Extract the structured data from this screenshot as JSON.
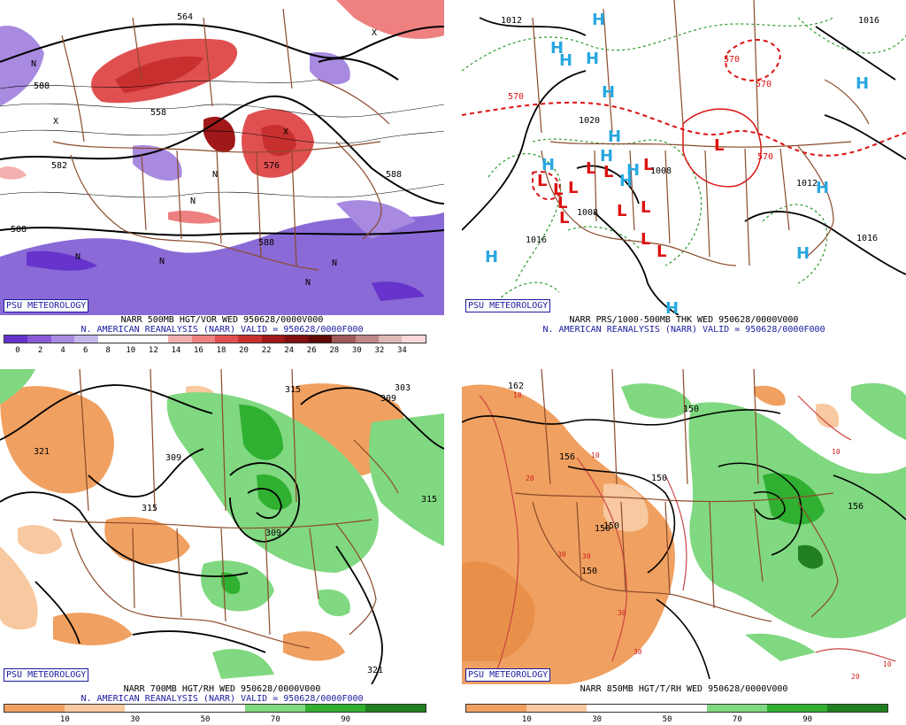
{
  "panels": [
    {
      "id": "p500",
      "badge": "PSU METEOROLOGY",
      "line1": "NARR 500MB HGT/VOR WED 950628/0000V000",
      "line2": "N. AMERICAN REANALYSIS (NARR) VALID = 950628/0000F000",
      "colorbar_labels": [
        "0",
        "2",
        "4",
        "6",
        "8",
        "10",
        "12",
        "14",
        "16",
        "18",
        "20",
        "22",
        "24",
        "26",
        "28",
        "30",
        "32",
        "34"
      ],
      "colorbar_colors": [
        "#6633cc",
        "#8a5ad6",
        "#a88ae0",
        "#c6b8ec",
        "#ffffff",
        "#ffffff",
        "#ffffff",
        "#f4b0b0",
        "#ee8080",
        "#e05050",
        "#c83030",
        "#a01818",
        "#801010",
        "#600808",
        "#a05a5a",
        "#c08888",
        "#e0b8b8",
        "#f8d8d8"
      ],
      "contour_labels": [
        "588",
        "588",
        "582",
        "576",
        "588",
        "588",
        "564",
        "558"
      ],
      "markers": [
        "N",
        "N",
        "N",
        "N",
        "N",
        "N",
        "N",
        "X",
        "X",
        "X"
      ]
    },
    {
      "id": "p1000",
      "badge": "PSU METEOROLOGY",
      "line1": "NARR PRS/1000-500MB THK WED 950628/0000V000",
      "line2": "N. AMERICAN REANALYSIS (NARR) VALID = 950628/0000F000",
      "contour_labels": [
        "1012",
        "1008",
        "1016",
        "1016",
        "1016",
        "1012",
        "1008",
        "1020",
        "570",
        "570",
        "570",
        "570"
      ],
      "high_label": "H",
      "low_label": "L"
    },
    {
      "id": "p700",
      "badge": "PSU METEOROLOGY",
      "line1": "NARR 700MB HGT/RH WED 950628/0000V000",
      "line2": "N. AMERICAN REANALYSIS (NARR) VALID = 950628/0000F000",
      "colorbar_labels": [
        "10",
        "30",
        "50",
        "70",
        "90"
      ],
      "colorbar_colors": [
        "#f0a060",
        "#f8c8a0",
        "#ffffff",
        "#ffffff",
        "#80d880",
        "#30b030",
        "#208020"
      ],
      "contour_labels": [
        "321",
        "315",
        "309",
        "315",
        "303",
        "309",
        "315",
        "309",
        "321"
      ]
    },
    {
      "id": "p850",
      "badge": "PSU METEOROLOGY",
      "line1": "NARR 850MB HGT/T/RH WED 950628/0000V000",
      "colorbar_labels": [
        "10",
        "30",
        "50",
        "70",
        "90"
      ],
      "colorbar_colors": [
        "#f0a060",
        "#f8c8a0",
        "#ffffff",
        "#ffffff",
        "#80d880",
        "#30b030",
        "#208020"
      ],
      "contour_labels": [
        "162",
        "156",
        "150",
        "150",
        "150",
        "156",
        "150",
        "150"
      ],
      "temp_labels": [
        "10",
        "10",
        "20",
        "30",
        "30",
        "30",
        "30",
        "20",
        "10",
        "10"
      ]
    }
  ]
}
